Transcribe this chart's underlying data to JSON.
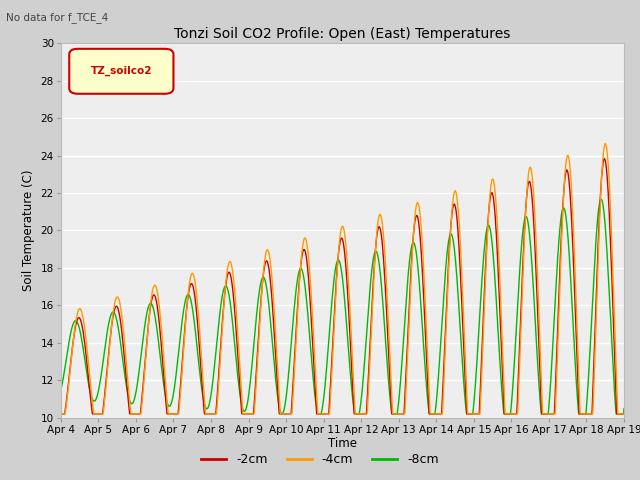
{
  "title": "Tonzi Soil CO2 Profile: Open (East) Temperatures",
  "subtitle": "No data for f_TCE_4",
  "xlabel": "Time",
  "ylabel": "Soil Temperature (C)",
  "legend_label": "TZ_soilco2",
  "ylim": [
    10,
    30
  ],
  "x_tick_labels": [
    "Apr 4",
    "Apr 5",
    "Apr 6",
    "Apr 7",
    "Apr 8",
    "Apr 9",
    "Apr 10",
    "Apr 11",
    "Apr 12",
    "Apr 13",
    "Apr 14",
    "Apr 15",
    "Apr 16",
    "Apr 17",
    "Apr 18",
    "Apr 19"
  ],
  "line_colors": {
    "2cm": "#cc0000",
    "4cm": "#ff9900",
    "8cm": "#00bb00"
  },
  "line_labels": [
    "-2cm",
    "-4cm",
    "-8cm"
  ],
  "fig_bg": "#d0d0d0",
  "plot_bg": "#eeeeee",
  "grid_color": "#ffffff"
}
